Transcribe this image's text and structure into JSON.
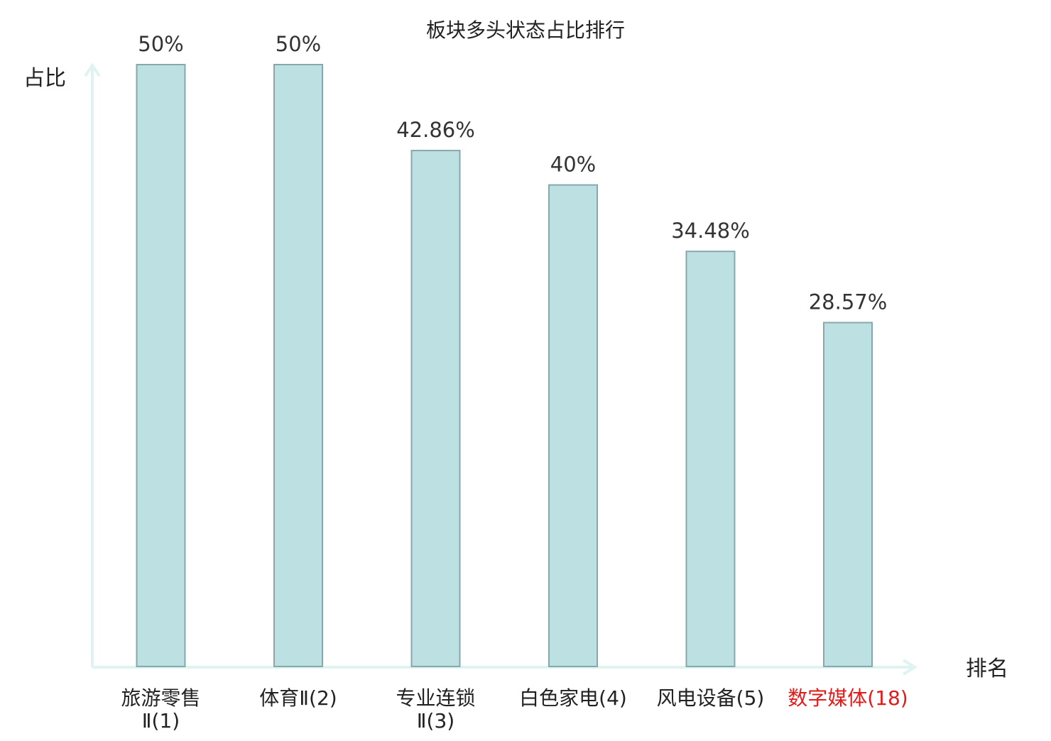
{
  "chart_data": {
    "type": "bar",
    "title": "板块多头状态占比排行",
    "xlabel": "排名",
    "ylabel": "占比",
    "ylim": [
      0,
      50
    ],
    "grid": false,
    "legend": "none",
    "categories": [
      {
        "lines": [
          "旅游零售",
          "Ⅱ(1)"
        ],
        "highlight": false
      },
      {
        "lines": [
          "体育Ⅱ(2)"
        ],
        "highlight": false
      },
      {
        "lines": [
          "专业连锁",
          "Ⅱ(3)"
        ],
        "highlight": false
      },
      {
        "lines": [
          "白色家电(4)"
        ],
        "highlight": false
      },
      {
        "lines": [
          "风电设备(5)"
        ],
        "highlight": false
      },
      {
        "lines": [
          "数字媒体(18)"
        ],
        "highlight": true
      }
    ],
    "values": [
      50,
      50,
      42.86,
      40,
      34.48,
      28.57
    ],
    "value_labels": [
      "50%",
      "50%",
      "42.86%",
      "40%",
      "34.48%",
      "28.57%"
    ],
    "colors": {
      "bar_fill": "#bde1e3",
      "bar_stroke": "#86a8ab",
      "axis": "#dff3f0",
      "text": "#333333",
      "label_text": "#222222",
      "highlight": "#e31a1a"
    }
  }
}
